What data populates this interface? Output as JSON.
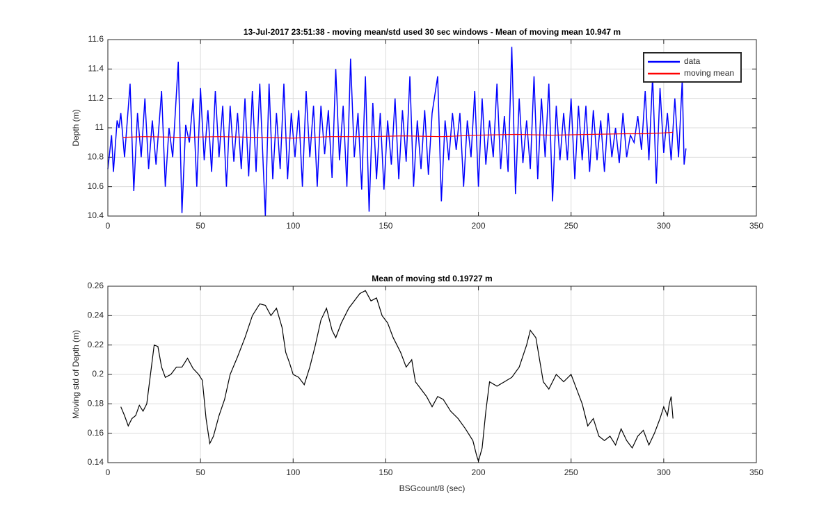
{
  "chart_data": [
    {
      "type": "line",
      "title": "13-Jul-2017 23:51:38 - moving mean/std used 30 sec windows - Mean of moving mean 10.947 m",
      "ylabel": "Depth (m)",
      "x": [
        0,
        2,
        3,
        5,
        6,
        7,
        9,
        12,
        14,
        16,
        18,
        20,
        22,
        24,
        26,
        29,
        31,
        33,
        35,
        38,
        40,
        42,
        44,
        46,
        48,
        50,
        52,
        54,
        56,
        58,
        60,
        62,
        64,
        66,
        68,
        70,
        72,
        74,
        76,
        78,
        80,
        82,
        85,
        87,
        89,
        91,
        93,
        95,
        97,
        99,
        101,
        103,
        105,
        107,
        109,
        111,
        113,
        115,
        117,
        119,
        121,
        123,
        125,
        127,
        129,
        131,
        133,
        135,
        137,
        139,
        141,
        143,
        145,
        147,
        149,
        151,
        153,
        155,
        157,
        159,
        161,
        163,
        165,
        167,
        169,
        171,
        173,
        175,
        178,
        180,
        182,
        184,
        186,
        188,
        190,
        192,
        194,
        196,
        198,
        200,
        202,
        204,
        206,
        208,
        210,
        212,
        214,
        216,
        218,
        220,
        222,
        224,
        226,
        228,
        230,
        232,
        234,
        236,
        238,
        240,
        242,
        244,
        246,
        248,
        250,
        252,
        254,
        256,
        258,
        260,
        262,
        264,
        266,
        268,
        270,
        272,
        274,
        276,
        278,
        280,
        282,
        284,
        286,
        288,
        290,
        292,
        294,
        296,
        298,
        300,
        302,
        304,
        306,
        308,
        310,
        311,
        312
      ],
      "series": [
        {
          "name": "data",
          "color": "#0000ff",
          "values": [
            10.72,
            10.95,
            10.7,
            11.05,
            11.0,
            11.1,
            10.8,
            11.3,
            10.57,
            11.1,
            10.8,
            11.2,
            10.72,
            11.05,
            10.75,
            11.25,
            10.6,
            11.0,
            10.8,
            11.45,
            10.42,
            11.02,
            10.9,
            11.2,
            10.6,
            11.27,
            10.78,
            11.12,
            10.7,
            11.25,
            10.8,
            11.15,
            10.6,
            11.15,
            10.77,
            11.1,
            10.72,
            11.2,
            10.67,
            11.25,
            10.7,
            11.3,
            10.4,
            11.3,
            10.65,
            11.1,
            10.72,
            11.3,
            10.65,
            11.1,
            10.8,
            11.12,
            10.6,
            11.25,
            10.8,
            11.15,
            10.6,
            11.15,
            10.82,
            11.12,
            10.66,
            11.4,
            10.78,
            11.15,
            10.6,
            11.47,
            10.8,
            11.1,
            10.58,
            11.35,
            10.43,
            11.17,
            10.65,
            11.1,
            10.58,
            11.05,
            10.75,
            11.2,
            10.65,
            11.12,
            10.77,
            11.35,
            10.6,
            11.05,
            10.72,
            11.12,
            10.68,
            11.1,
            11.35,
            10.5,
            11.05,
            10.78,
            11.1,
            10.85,
            11.1,
            10.6,
            11.05,
            10.8,
            11.25,
            10.6,
            11.2,
            10.75,
            11.05,
            10.8,
            11.3,
            10.72,
            11.08,
            10.7,
            11.55,
            10.55,
            11.2,
            10.76,
            11.05,
            10.72,
            11.35,
            10.65,
            11.2,
            10.8,
            11.3,
            10.5,
            11.15,
            10.78,
            11.1,
            10.78,
            11.2,
            10.65,
            11.15,
            10.78,
            11.15,
            10.7,
            11.12,
            10.78,
            11.05,
            10.7,
            11.1,
            10.8,
            11.0,
            10.76,
            11.1,
            10.8,
            10.95,
            10.9,
            11.08,
            10.85,
            11.25,
            10.78,
            11.35,
            10.62,
            11.27,
            10.83,
            11.1,
            10.78,
            11.2,
            10.8,
            11.33,
            10.75,
            10.86
          ]
        },
        {
          "name": "moving mean",
          "color": "#ff0000",
          "x": [
            8,
            20,
            40,
            60,
            80,
            100,
            120,
            140,
            160,
            180,
            200,
            220,
            240,
            260,
            280,
            290,
            300,
            305
          ],
          "values": [
            10.935,
            10.94,
            10.935,
            10.94,
            10.935,
            10.93,
            10.94,
            10.94,
            10.945,
            10.94,
            10.95,
            10.955,
            10.95,
            10.955,
            10.96,
            10.96,
            10.965,
            10.97
          ]
        }
      ],
      "xlim": [
        0,
        350
      ],
      "xticks": [
        0,
        50,
        100,
        150,
        200,
        250,
        300,
        350
      ],
      "ylim": [
        10.4,
        11.6
      ],
      "yticks": [
        10.4,
        10.6,
        10.8,
        11,
        11.2,
        11.4,
        11.6
      ],
      "grid": true,
      "legend": "northeast"
    },
    {
      "type": "line",
      "title": "Mean of moving std 0.19727 m",
      "xlabel": "BSGcount/8 (sec)",
      "ylabel": "Moving std of Depth (m)",
      "x": [
        7,
        9,
        11,
        13,
        15,
        17,
        19,
        21,
        23,
        25,
        27,
        29,
        31,
        34,
        37,
        40,
        43,
        46,
        49,
        51,
        53,
        55,
        57,
        60,
        63,
        66,
        70,
        74,
        78,
        82,
        85,
        88,
        91,
        94,
        96,
        98,
        100,
        103,
        106,
        109,
        112,
        115,
        118,
        121,
        123,
        126,
        130,
        133,
        136,
        139,
        142,
        145,
        148,
        151,
        154,
        158,
        161,
        164,
        166,
        169,
        172,
        175,
        178,
        181,
        185,
        189,
        193,
        197,
        199,
        200,
        202,
        204,
        206,
        210,
        214,
        218,
        222,
        226,
        228,
        231,
        233,
        235,
        238,
        242,
        246,
        250,
        253,
        256,
        259,
        262,
        265,
        268,
        271,
        274,
        277,
        280,
        283,
        286,
        289,
        292,
        295,
        298,
        300,
        302,
        303,
        304,
        305
      ],
      "series": [
        {
          "color": "#000000",
          "values": [
            0.178,
            0.172,
            0.165,
            0.17,
            0.172,
            0.179,
            0.175,
            0.18,
            0.2,
            0.22,
            0.219,
            0.205,
            0.198,
            0.2,
            0.205,
            0.205,
            0.211,
            0.204,
            0.2,
            0.196,
            0.17,
            0.153,
            0.158,
            0.172,
            0.183,
            0.2,
            0.212,
            0.225,
            0.24,
            0.248,
            0.247,
            0.24,
            0.245,
            0.232,
            0.215,
            0.208,
            0.2,
            0.198,
            0.193,
            0.205,
            0.22,
            0.237,
            0.245,
            0.23,
            0.225,
            0.235,
            0.245,
            0.25,
            0.255,
            0.257,
            0.25,
            0.252,
            0.24,
            0.235,
            0.225,
            0.215,
            0.205,
            0.21,
            0.195,
            0.19,
            0.185,
            0.178,
            0.185,
            0.183,
            0.175,
            0.17,
            0.163,
            0.155,
            0.145,
            0.141,
            0.15,
            0.175,
            0.195,
            0.192,
            0.195,
            0.198,
            0.205,
            0.22,
            0.23,
            0.225,
            0.21,
            0.195,
            0.19,
            0.2,
            0.195,
            0.2,
            0.19,
            0.18,
            0.165,
            0.17,
            0.158,
            0.155,
            0.158,
            0.152,
            0.163,
            0.155,
            0.15,
            0.158,
            0.162,
            0.152,
            0.16,
            0.17,
            0.178,
            0.172,
            0.18,
            0.185,
            0.17
          ]
        }
      ],
      "xlim": [
        0,
        350
      ],
      "xticks": [
        0,
        50,
        100,
        150,
        200,
        250,
        300,
        350
      ],
      "ylim": [
        0.14,
        0.26
      ],
      "yticks": [
        0.14,
        0.16,
        0.18,
        0.2,
        0.22,
        0.24,
        0.26
      ],
      "grid": true
    }
  ]
}
